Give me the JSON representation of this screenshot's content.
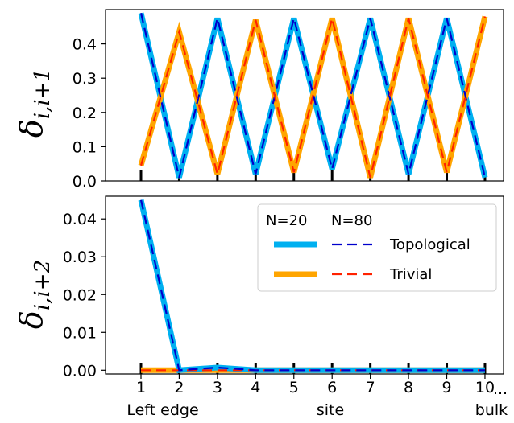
{
  "chart_data": [
    {
      "type": "line",
      "ylabel": "δi,i+1",
      "ylabel_main": "δ",
      "ylabel_sub": "i,i+1",
      "ylim": [
        0.0,
        0.5
      ],
      "yticks": [
        "0.0",
        "0.1",
        "0.2",
        "0.3",
        "0.4"
      ],
      "ytick_values": [
        0.0,
        0.1,
        0.2,
        0.3,
        0.4
      ],
      "x": [
        1,
        2,
        3,
        4,
        5,
        6,
        7,
        8,
        9,
        10
      ],
      "series": [
        {
          "name": "Topological",
          "values": [
            0.49,
            0.01,
            0.475,
            0.02,
            0.475,
            0.035,
            0.475,
            0.02,
            0.475,
            0.01
          ]
        },
        {
          "name": "Trivial",
          "values": [
            0.045,
            0.435,
            0.02,
            0.47,
            0.025,
            0.475,
            0.01,
            0.475,
            0.025,
            0.48
          ]
        }
      ]
    },
    {
      "type": "line",
      "ylabel": "δi,i+2",
      "ylabel_main": "δ",
      "ylabel_sub": "i,i+2",
      "ylim": [
        -0.001,
        0.046
      ],
      "yticks": [
        "0.00",
        "0.01",
        "0.02",
        "0.03",
        "0.04"
      ],
      "ytick_values": [
        0.0,
        0.01,
        0.02,
        0.03,
        0.04
      ],
      "xlabel": "site",
      "x": [
        1,
        2,
        3,
        4,
        5,
        6,
        7,
        8,
        9,
        10
      ],
      "xticks": [
        "1",
        "2",
        "3",
        "4",
        "5",
        "6",
        "7",
        "8",
        "9",
        "10"
      ],
      "x_extra_label": "...",
      "x_annotations": [
        "Left edge",
        "bulk"
      ],
      "series": [
        {
          "name": "Topological",
          "values": [
            0.045,
            0.0,
            0.0007,
            0.0,
            0.0,
            0.0,
            0.0,
            0.0,
            0.0,
            0.0
          ]
        },
        {
          "name": "Trivial",
          "values": [
            0.0,
            0.0,
            0.0,
            0.0,
            0.0,
            0.0,
            0.0,
            0.0,
            0.0,
            0.0
          ]
        }
      ],
      "legend": {
        "position": "upper-right",
        "headers": [
          "N=20",
          "N=80"
        ],
        "entries": [
          "Topological",
          "Trivial"
        ]
      }
    }
  ],
  "colors": {
    "topological_n20": "#00b0f0",
    "topological_n80": "#0000cc",
    "trivial_n20": "#ffa500",
    "trivial_n80": "#ff2200"
  }
}
